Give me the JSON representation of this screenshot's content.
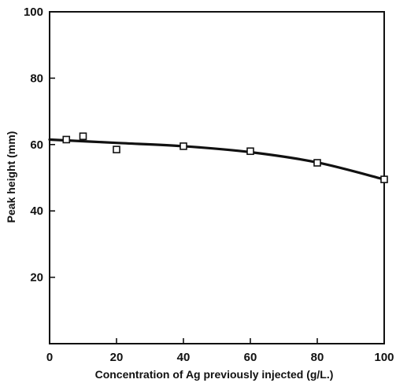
{
  "chart_data": {
    "type": "scatter",
    "title": "",
    "xlabel": "Concentration of Ag previously injected (g/L.)",
    "ylabel": "Peak height (mm)",
    "xlim": [
      0,
      100
    ],
    "ylim": [
      0,
      100
    ],
    "x_ticks": [
      0,
      20,
      40,
      60,
      80,
      100
    ],
    "y_ticks": [
      20,
      40,
      60,
      80,
      100
    ],
    "x_tick_labels": [
      "0",
      "20",
      "40",
      "60",
      "80",
      "100"
    ],
    "y_tick_labels": [
      "20",
      "40",
      "60",
      "80",
      "100"
    ],
    "grid": false,
    "series": [
      {
        "marker": "open-square",
        "points": [
          {
            "x": 5,
            "y": 61.5
          },
          {
            "x": 10,
            "y": 62.5
          },
          {
            "x": 20,
            "y": 58.5
          },
          {
            "x": 40,
            "y": 59.5
          },
          {
            "x": 60,
            "y": 58.0
          },
          {
            "x": 80,
            "y": 54.5
          },
          {
            "x": 100,
            "y": 49.5
          }
        ]
      }
    ],
    "fit_curve": [
      {
        "x": 0,
        "y": 61.5
      },
      {
        "x": 20,
        "y": 60.5
      },
      {
        "x": 40,
        "y": 59.5
      },
      {
        "x": 60,
        "y": 57.7
      },
      {
        "x": 80,
        "y": 54.6
      },
      {
        "x": 100,
        "y": 49.5
      }
    ],
    "colors": {
      "ink": "#111111",
      "background": "#ffffff"
    }
  }
}
